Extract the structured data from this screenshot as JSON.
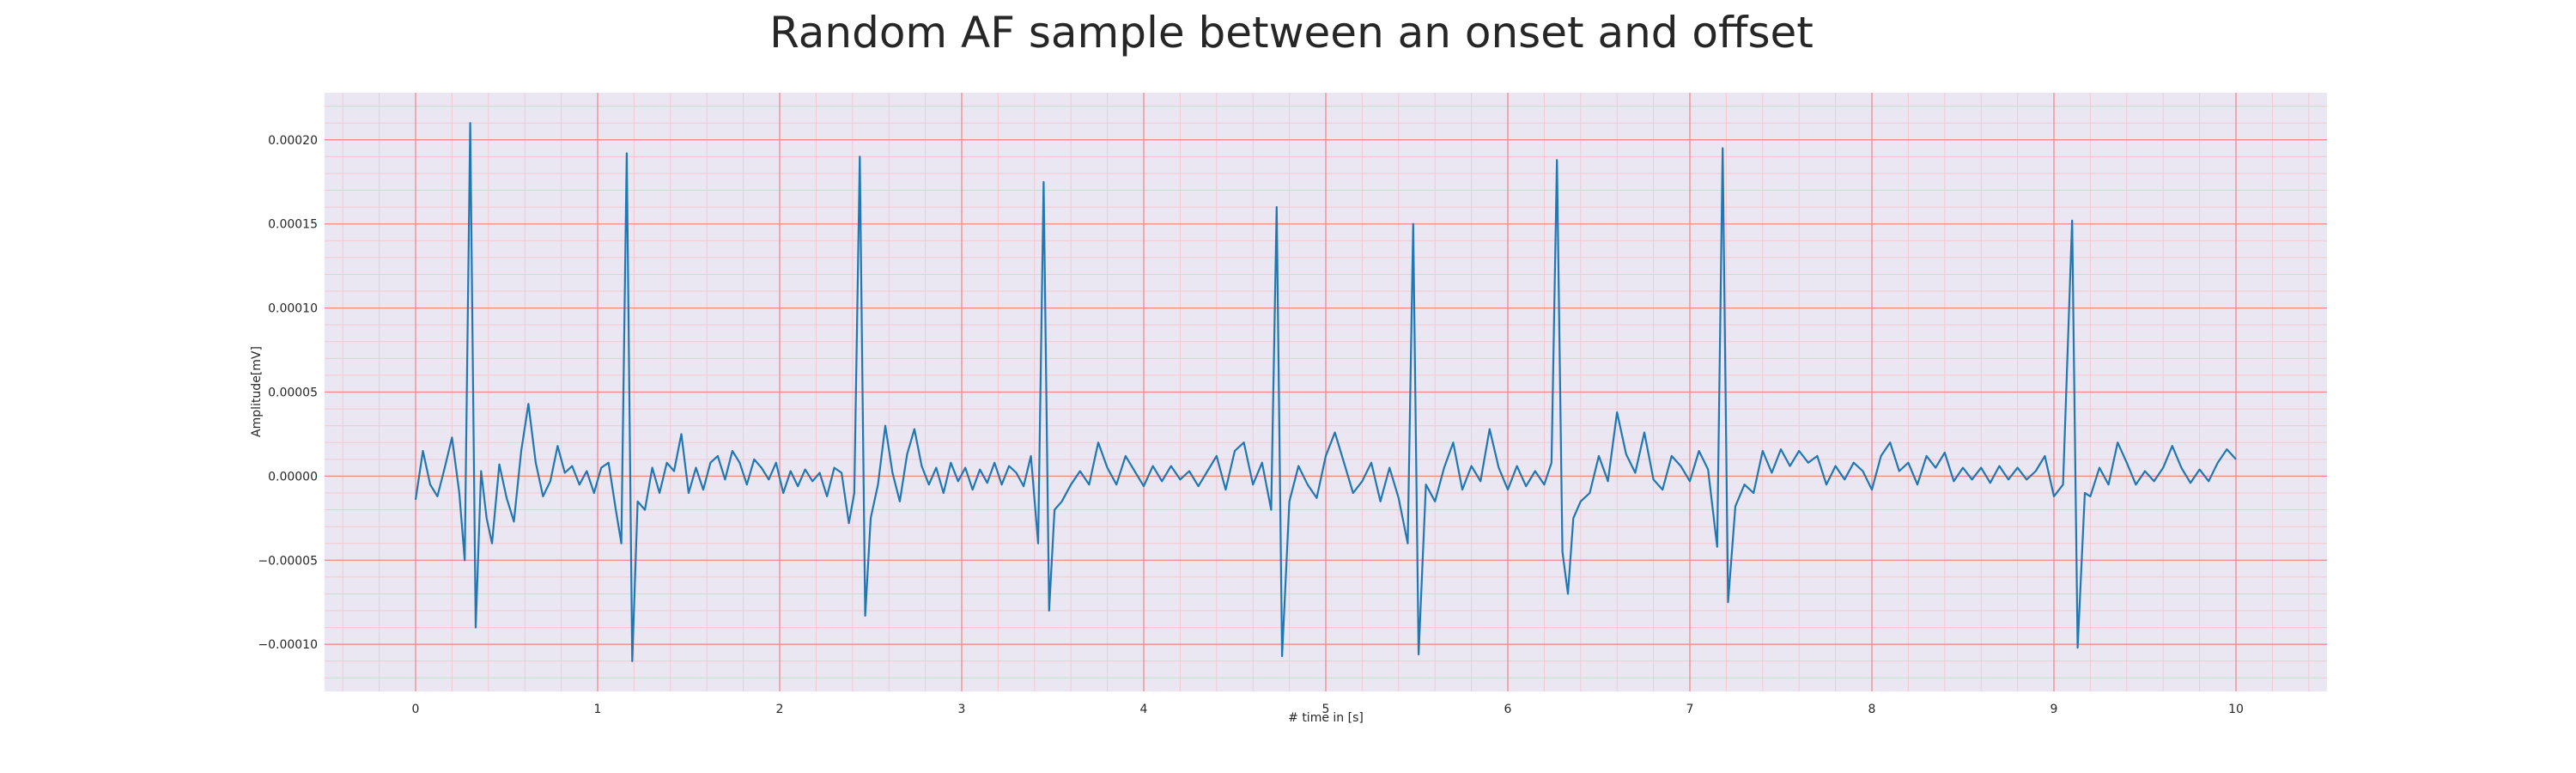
{
  "chart_data": {
    "type": "line",
    "title": "Random AF sample between an onset and offset",
    "xlabel": "# time in [s]",
    "ylabel": "Amplitude[mV]",
    "xlim": [
      -0.5,
      10.5
    ],
    "ylim": [
      -0.000128,
      0.000228
    ],
    "x_ticks": [
      0,
      1,
      2,
      3,
      4,
      5,
      6,
      7,
      8,
      9,
      10
    ],
    "y_ticks": [
      -0.0001,
      -5e-05,
      0.0,
      5e-05,
      0.0001,
      0.00015,
      0.0002
    ],
    "y_tick_labels": [
      "−0.00010",
      "−0.00005",
      "0.00000",
      "0.00005",
      "0.00010",
      "0.00015",
      "0.00020"
    ],
    "grid": true,
    "minor_grid": true,
    "colors": {
      "background": "#eae6f2",
      "major_grid": "#f08a8a",
      "minor_grid": "#f4c8cf",
      "line": "#1f77b4"
    },
    "series": [
      {
        "values": [
          [
            0.0,
            -1.4e-05
          ],
          [
            0.04,
            1.5e-05
          ],
          [
            0.08,
            -5e-06
          ],
          [
            0.12,
            -1.2e-05
          ],
          [
            0.16,
            5e-06
          ],
          [
            0.2,
            2.3e-05
          ],
          [
            0.24,
            -1e-05
          ],
          [
            0.27,
            -5e-05
          ],
          [
            0.3,
            0.00021
          ],
          [
            0.33,
            -9e-05
          ],
          [
            0.36,
            3e-06
          ],
          [
            0.39,
            -2.5e-05
          ],
          [
            0.42,
            -4e-05
          ],
          [
            0.46,
            7e-06
          ],
          [
            0.5,
            -1.3e-05
          ],
          [
            0.54,
            -2.7e-05
          ],
          [
            0.58,
            1.5e-05
          ],
          [
            0.62,
            4.3e-05
          ],
          [
            0.66,
            8e-06
          ],
          [
            0.7,
            -1.2e-05
          ],
          [
            0.74,
            -3e-06
          ],
          [
            0.78,
            1.8e-05
          ],
          [
            0.82,
            2e-06
          ],
          [
            0.86,
            6e-06
          ],
          [
            0.9,
            -5e-06
          ],
          [
            0.94,
            3e-06
          ],
          [
            0.98,
            -1e-05
          ],
          [
            1.02,
            5e-06
          ],
          [
            1.06,
            8e-06
          ],
          [
            1.1,
            -2e-05
          ],
          [
            1.13,
            -4e-05
          ],
          [
            1.16,
            0.000192
          ],
          [
            1.19,
            -0.00011
          ],
          [
            1.22,
            -1.5e-05
          ],
          [
            1.26,
            -2e-05
          ],
          [
            1.3,
            5e-06
          ],
          [
            1.34,
            -1e-05
          ],
          [
            1.38,
            8e-06
          ],
          [
            1.42,
            3e-06
          ],
          [
            1.46,
            2.5e-05
          ],
          [
            1.5,
            -1e-05
          ],
          [
            1.54,
            5e-06
          ],
          [
            1.58,
            -8e-06
          ],
          [
            1.62,
            8e-06
          ],
          [
            1.66,
            1.2e-05
          ],
          [
            1.7,
            -2e-06
          ],
          [
            1.74,
            1.5e-05
          ],
          [
            1.78,
            8e-06
          ],
          [
            1.82,
            -5e-06
          ],
          [
            1.86,
            1e-05
          ],
          [
            1.9,
            5e-06
          ],
          [
            1.94,
            -2e-06
          ],
          [
            1.98,
            8e-06
          ],
          [
            2.02,
            -1e-05
          ],
          [
            2.06,
            3e-06
          ],
          [
            2.1,
            -6e-06
          ],
          [
            2.14,
            4e-06
          ],
          [
            2.18,
            -3e-06
          ],
          [
            2.22,
            2e-06
          ],
          [
            2.26,
            -1.2e-05
          ],
          [
            2.3,
            5e-06
          ],
          [
            2.34,
            2e-06
          ],
          [
            2.38,
            -2.8e-05
          ],
          [
            2.41,
            -1e-05
          ],
          [
            2.44,
            0.00019
          ],
          [
            2.47,
            -8.3e-05
          ],
          [
            2.5,
            -2.5e-05
          ],
          [
            2.54,
            -5e-06
          ],
          [
            2.58,
            3e-05
          ],
          [
            2.62,
            2e-06
          ],
          [
            2.66,
            -1.5e-05
          ],
          [
            2.7,
            1.3e-05
          ],
          [
            2.74,
            2.8e-05
          ],
          [
            2.78,
            6e-06
          ],
          [
            2.82,
            -5e-06
          ],
          [
            2.86,
            5e-06
          ],
          [
            2.9,
            -1e-05
          ],
          [
            2.94,
            8e-06
          ],
          [
            2.98,
            -3e-06
          ],
          [
            3.02,
            5e-06
          ],
          [
            3.06,
            -8e-06
          ],
          [
            3.1,
            4e-06
          ],
          [
            3.14,
            -4e-06
          ],
          [
            3.18,
            8e-06
          ],
          [
            3.22,
            -5e-06
          ],
          [
            3.26,
            6e-06
          ],
          [
            3.3,
            2e-06
          ],
          [
            3.34,
            -6e-06
          ],
          [
            3.38,
            1.2e-05
          ],
          [
            3.42,
            -4e-05
          ],
          [
            3.45,
            0.000175
          ],
          [
            3.48,
            -8e-05
          ],
          [
            3.51,
            -2e-05
          ],
          [
            3.55,
            -1.5e-05
          ],
          [
            3.6,
            -5e-06
          ],
          [
            3.65,
            3e-06
          ],
          [
            3.7,
            -5e-06
          ],
          [
            3.75,
            2e-05
          ],
          [
            3.8,
            5e-06
          ],
          [
            3.85,
            -5e-06
          ],
          [
            3.9,
            1.2e-05
          ],
          [
            3.95,
            3e-06
          ],
          [
            4.0,
            -6e-06
          ],
          [
            4.05,
            6e-06
          ],
          [
            4.1,
            -3e-06
          ],
          [
            4.15,
            6e-06
          ],
          [
            4.2,
            -2e-06
          ],
          [
            4.25,
            3e-06
          ],
          [
            4.3,
            -6e-06
          ],
          [
            4.35,
            3e-06
          ],
          [
            4.4,
            1.2e-05
          ],
          [
            4.45,
            -8e-06
          ],
          [
            4.5,
            1.5e-05
          ],
          [
            4.55,
            2e-05
          ],
          [
            4.6,
            -5e-06
          ],
          [
            4.65,
            8e-06
          ],
          [
            4.7,
            -2e-05
          ],
          [
            4.73,
            0.00016
          ],
          [
            4.76,
            -0.000107
          ],
          [
            4.8,
            -1.5e-05
          ],
          [
            4.85,
            6e-06
          ],
          [
            4.9,
            -5e-06
          ],
          [
            4.95,
            -1.3e-05
          ],
          [
            5.0,
            1.2e-05
          ],
          [
            5.05,
            2.6e-05
          ],
          [
            5.1,
            8e-06
          ],
          [
            5.15,
            -1e-05
          ],
          [
            5.2,
            -3e-06
          ],
          [
            5.25,
            8e-06
          ],
          [
            5.3,
            -1.5e-05
          ],
          [
            5.35,
            5e-06
          ],
          [
            5.4,
            -1.3e-05
          ],
          [
            5.45,
            -4e-05
          ],
          [
            5.48,
            0.00015
          ],
          [
            5.51,
            -0.000106
          ],
          [
            5.55,
            -5e-06
          ],
          [
            5.6,
            -1.5e-05
          ],
          [
            5.65,
            5e-06
          ],
          [
            5.7,
            2e-05
          ],
          [
            5.75,
            -8e-06
          ],
          [
            5.8,
            6e-06
          ],
          [
            5.85,
            -3e-06
          ],
          [
            5.9,
            2.8e-05
          ],
          [
            5.95,
            5e-06
          ],
          [
            6.0,
            -8e-06
          ],
          [
            6.05,
            6e-06
          ],
          [
            6.1,
            -6e-06
          ],
          [
            6.15,
            3e-06
          ],
          [
            6.2,
            -5e-06
          ],
          [
            6.24,
            8e-06
          ],
          [
            6.27,
            0.000188
          ],
          [
            6.3,
            -4.5e-05
          ],
          [
            6.33,
            -7e-05
          ],
          [
            6.36,
            -2.5e-05
          ],
          [
            6.4,
            -1.5e-05
          ],
          [
            6.45,
            -1e-05
          ],
          [
            6.5,
            1.2e-05
          ],
          [
            6.55,
            -3e-06
          ],
          [
            6.6,
            3.8e-05
          ],
          [
            6.65,
            1.3e-05
          ],
          [
            6.7,
            2e-06
          ],
          [
            6.75,
            2.6e-05
          ],
          [
            6.8,
            -2e-06
          ],
          [
            6.85,
            -8e-06
          ],
          [
            6.9,
            1.2e-05
          ],
          [
            6.95,
            6e-06
          ],
          [
            7.0,
            -3e-06
          ],
          [
            7.05,
            1.5e-05
          ],
          [
            7.1,
            4e-06
          ],
          [
            7.15,
            -4.2e-05
          ],
          [
            7.18,
            0.000195
          ],
          [
            7.21,
            -7.5e-05
          ],
          [
            7.25,
            -1.8e-05
          ],
          [
            7.3,
            -5e-06
          ],
          [
            7.35,
            -1e-05
          ],
          [
            7.4,
            1.5e-05
          ],
          [
            7.45,
            2e-06
          ],
          [
            7.5,
            1.6e-05
          ],
          [
            7.55,
            6e-06
          ],
          [
            7.6,
            1.5e-05
          ],
          [
            7.65,
            8e-06
          ],
          [
            7.7,
            1.2e-05
          ],
          [
            7.75,
            -5e-06
          ],
          [
            7.8,
            6e-06
          ],
          [
            7.85,
            -2e-06
          ],
          [
            7.9,
            8e-06
          ],
          [
            7.95,
            3e-06
          ],
          [
            8.0,
            -8e-06
          ],
          [
            8.05,
            1.2e-05
          ],
          [
            8.1,
            2e-05
          ],
          [
            8.15,
            3e-06
          ],
          [
            8.2,
            8e-06
          ],
          [
            8.25,
            -5e-06
          ],
          [
            8.3,
            1.2e-05
          ],
          [
            8.35,
            5e-06
          ],
          [
            8.4,
            1.4e-05
          ],
          [
            8.45,
            -3e-06
          ],
          [
            8.5,
            5e-06
          ],
          [
            8.55,
            -2e-06
          ],
          [
            8.6,
            5e-06
          ],
          [
            8.65,
            -4e-06
          ],
          [
            8.7,
            6e-06
          ],
          [
            8.75,
            -2e-06
          ],
          [
            8.8,
            5e-06
          ],
          [
            8.85,
            -2e-06
          ],
          [
            8.9,
            3e-06
          ],
          [
            8.95,
            1.2e-05
          ],
          [
            9.0,
            -1.2e-05
          ],
          [
            9.05,
            -5e-06
          ],
          [
            9.1,
            0.000152
          ],
          [
            9.13,
            -0.000102
          ],
          [
            9.17,
            -1e-05
          ],
          [
            9.2,
            -1.2e-05
          ],
          [
            9.25,
            5e-06
          ],
          [
            9.3,
            -5e-06
          ],
          [
            9.35,
            2e-05
          ],
          [
            9.4,
            8e-06
          ],
          [
            9.45,
            -5e-06
          ],
          [
            9.5,
            3e-06
          ],
          [
            9.55,
            -3e-06
          ],
          [
            9.6,
            5e-06
          ],
          [
            9.65,
            1.8e-05
          ],
          [
            9.7,
            5e-06
          ],
          [
            9.75,
            -4e-06
          ],
          [
            9.8,
            4e-06
          ],
          [
            9.85,
            -3e-06
          ],
          [
            9.9,
            8e-06
          ],
          [
            9.95,
            1.6e-05
          ],
          [
            10.0,
            1e-05
          ]
        ]
      }
    ]
  }
}
